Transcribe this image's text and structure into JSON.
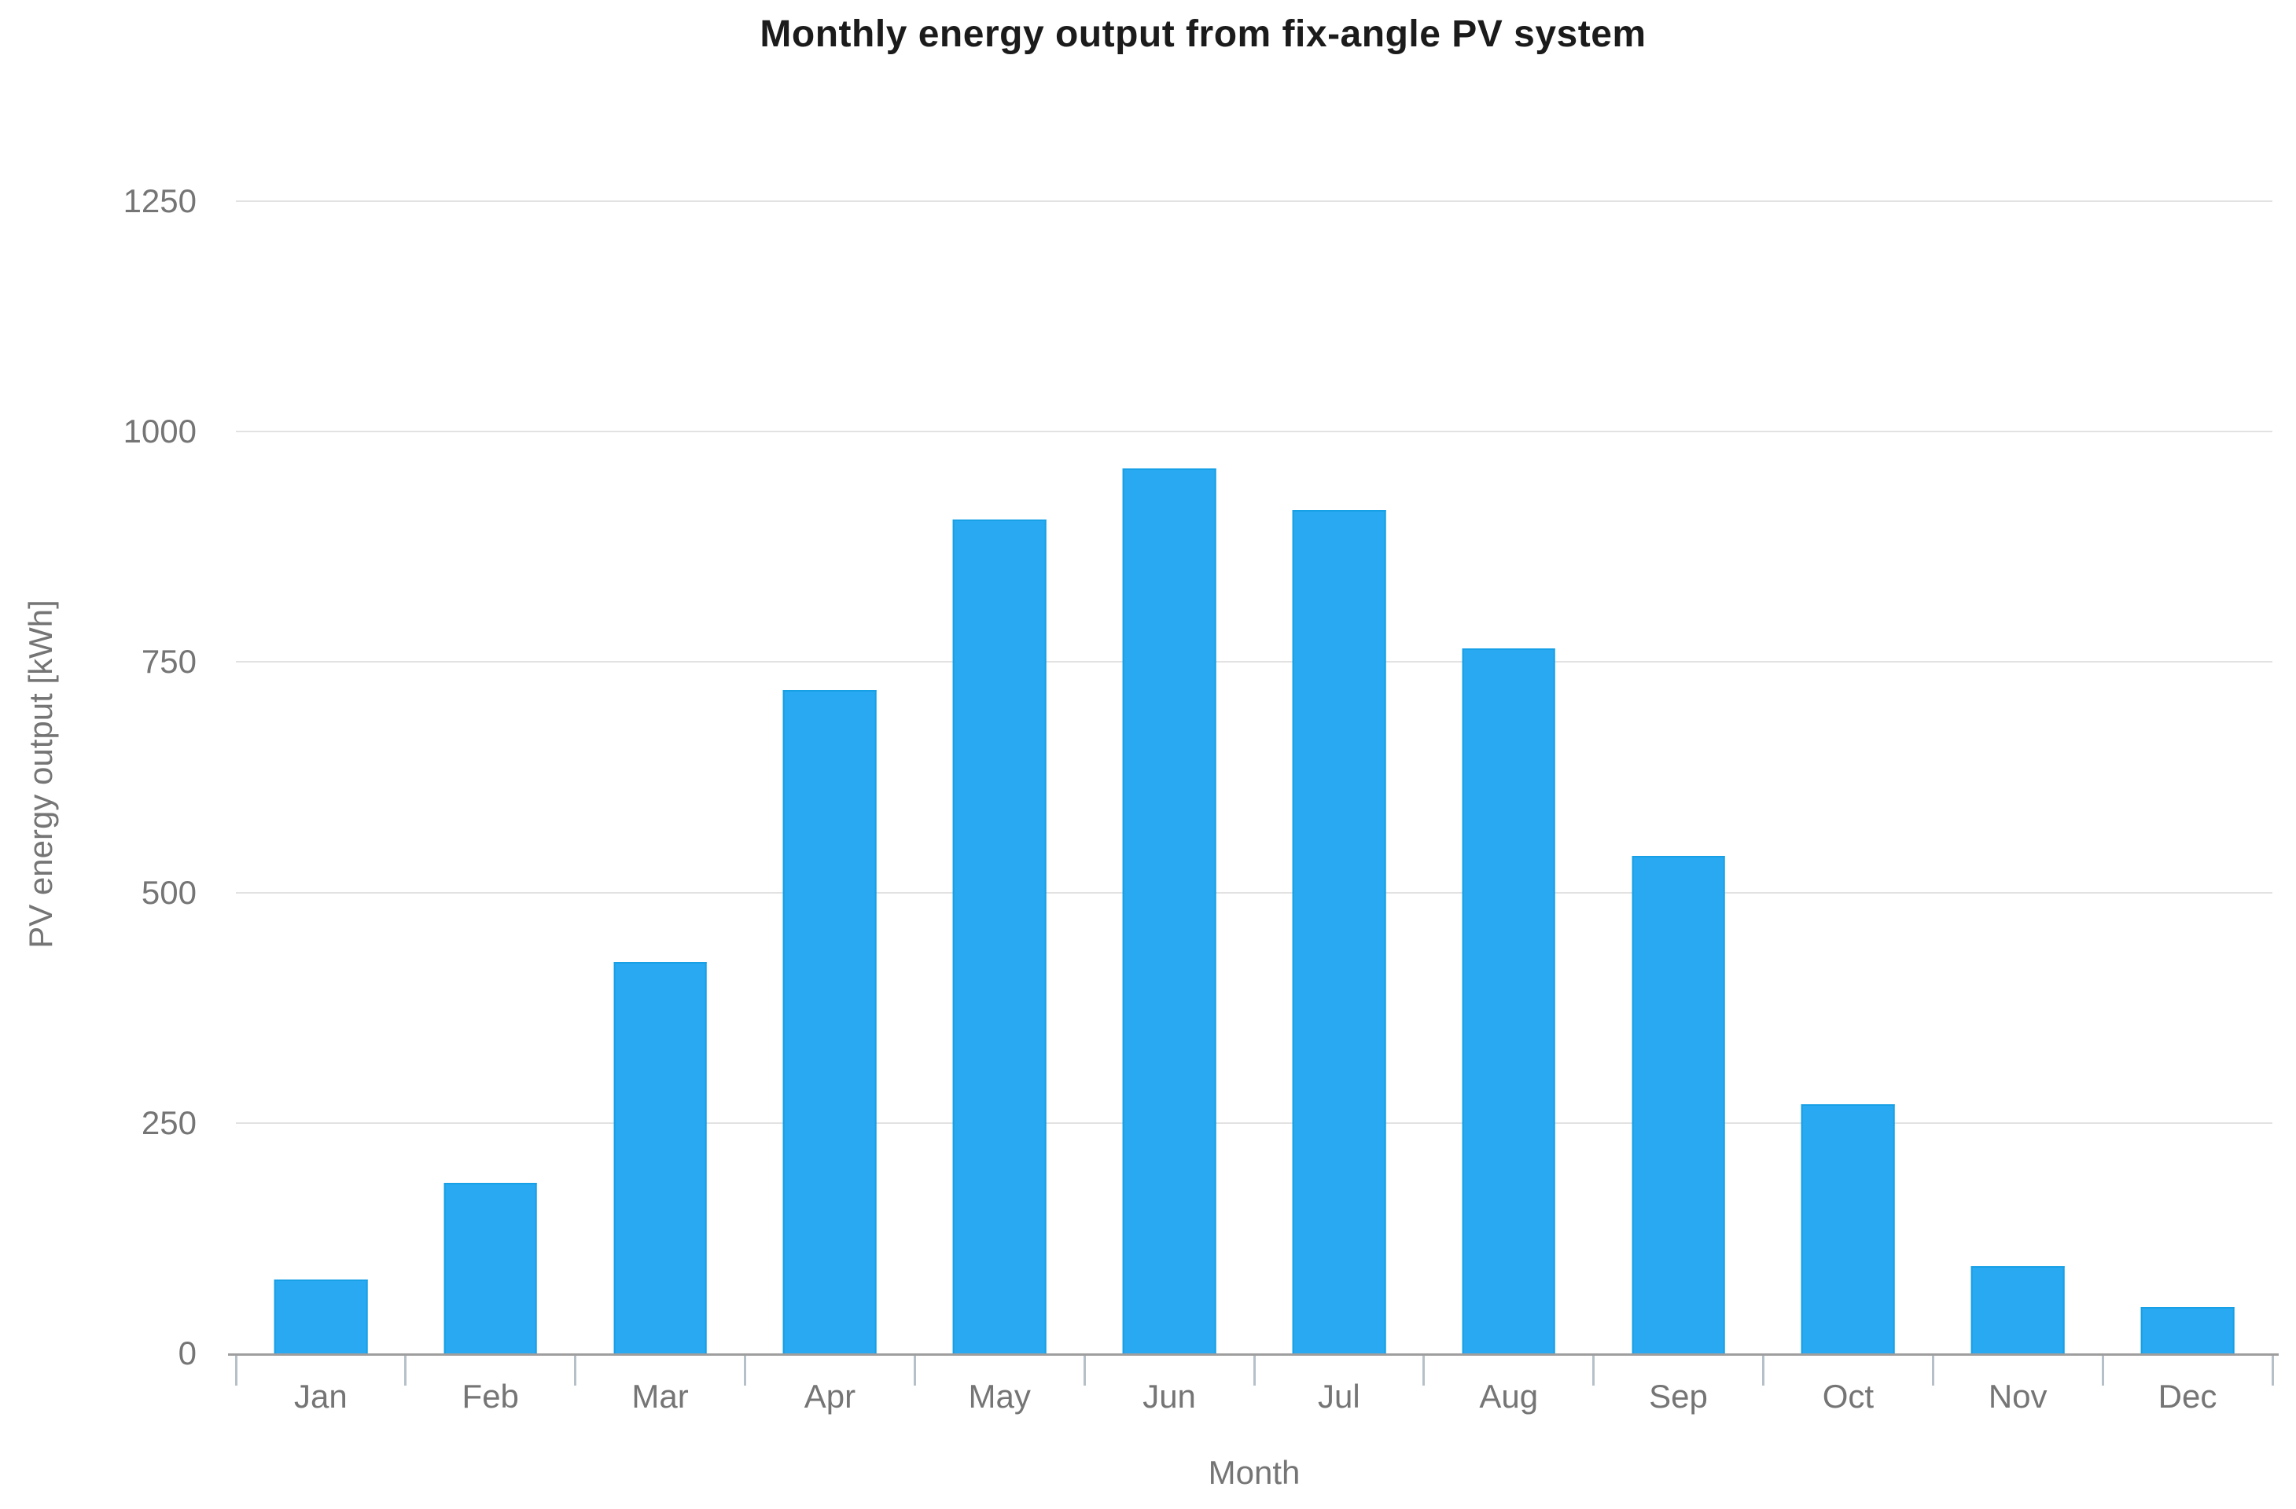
{
  "chart_data": {
    "type": "bar",
    "title": "Monthly energy output from fix-angle PV system",
    "categories": [
      "Jan",
      "Feb",
      "Mar",
      "Apr",
      "May",
      "Jun",
      "Jul",
      "Aug",
      "Sep",
      "Oct",
      "Nov",
      "Dec"
    ],
    "values": [
      80,
      185,
      425,
      720,
      905,
      960,
      915,
      765,
      540,
      270,
      95,
      50
    ],
    "xlabel": "Month",
    "ylabel": "PV energy output [kWh]",
    "ylim": [
      0,
      1250
    ],
    "yticks": [
      0,
      250,
      500,
      750,
      1000,
      1250
    ],
    "grid": true,
    "legend": "none",
    "bar_color": "#29a9f2",
    "bar_border_color": "#17a0e6",
    "gridline_color": "#e2e2e2",
    "axis_line_color": "#9e9e9e",
    "tick_mark_color": "#b6c0c9",
    "tick_text_color": "#757575",
    "title_color": "#1b1b1b",
    "background_color": "#ffffff"
  }
}
